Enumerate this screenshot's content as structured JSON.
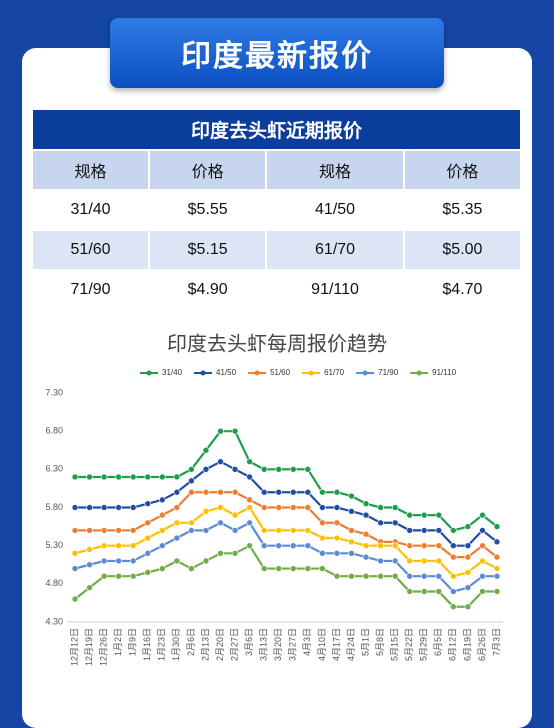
{
  "header": {
    "title": "印度最新报价"
  },
  "table": {
    "title": "印度去头虾近期报价",
    "columns": [
      "规格",
      "价格",
      "规格",
      "价格"
    ],
    "rows": [
      [
        "31/40",
        "$5.55",
        "41/50",
        "$5.35"
      ],
      [
        "51/60",
        "$5.15",
        "61/70",
        "$5.00"
      ],
      [
        "71/90",
        "$4.90",
        "91/110",
        "$4.70"
      ]
    ]
  },
  "chart_data": {
    "type": "line",
    "title": "印度去头虾每周报价趋势",
    "categories": [
      "12月12日",
      "12月19日",
      "12月26日",
      "1月2日",
      "1月9日",
      "1月16日",
      "1月23日",
      "1月30日",
      "2月6日",
      "2月13日",
      "2月20日",
      "2月27日",
      "3月6日",
      "3月13日",
      "3月20日",
      "3月27日",
      "4月3日",
      "4月10日",
      "4月17日",
      "4月24日",
      "5月1日",
      "5月8日",
      "5月15日",
      "5月22日",
      "5月29日",
      "6月5日",
      "6月12日",
      "6月19日",
      "6月26日",
      "7月3日"
    ],
    "series": [
      {
        "name": "31/40",
        "color": "#1e9e4a",
        "values": [
          6.2,
          6.2,
          6.2,
          6.2,
          6.2,
          6.2,
          6.2,
          6.2,
          6.3,
          6.55,
          6.8,
          6.8,
          6.4,
          6.3,
          6.3,
          6.3,
          6.3,
          6.0,
          6.0,
          5.95,
          5.85,
          5.8,
          5.8,
          5.7,
          5.7,
          5.7,
          5.5,
          5.55,
          5.7,
          5.55
        ]
      },
      {
        "name": "41/50",
        "color": "#1f4ea3",
        "values": [
          5.8,
          5.8,
          5.8,
          5.8,
          5.8,
          5.85,
          5.9,
          6.0,
          6.15,
          6.3,
          6.4,
          6.3,
          6.2,
          6.0,
          6.0,
          6.0,
          6.0,
          5.8,
          5.8,
          5.75,
          5.7,
          5.6,
          5.6,
          5.5,
          5.5,
          5.5,
          5.3,
          5.3,
          5.5,
          5.35
        ]
      },
      {
        "name": "51/60",
        "color": "#ed7d31",
        "values": [
          5.5,
          5.5,
          5.5,
          5.5,
          5.5,
          5.6,
          5.7,
          5.8,
          6.0,
          6.0,
          6.0,
          6.0,
          5.9,
          5.8,
          5.8,
          5.8,
          5.8,
          5.6,
          5.6,
          5.5,
          5.45,
          5.35,
          5.35,
          5.3,
          5.3,
          5.3,
          5.15,
          5.15,
          5.3,
          5.15
        ]
      },
      {
        "name": "61/70",
        "color": "#ffc000",
        "values": [
          5.2,
          5.25,
          5.3,
          5.3,
          5.3,
          5.4,
          5.5,
          5.6,
          5.6,
          5.75,
          5.8,
          5.7,
          5.8,
          5.5,
          5.5,
          5.5,
          5.5,
          5.4,
          5.4,
          5.35,
          5.3,
          5.3,
          5.3,
          5.1,
          5.1,
          5.1,
          4.9,
          4.95,
          5.1,
          5.0
        ]
      },
      {
        "name": "71/90",
        "color": "#5b8bd4",
        "values": [
          5.0,
          5.05,
          5.1,
          5.1,
          5.1,
          5.2,
          5.3,
          5.4,
          5.5,
          5.5,
          5.6,
          5.5,
          5.6,
          5.3,
          5.3,
          5.3,
          5.3,
          5.2,
          5.2,
          5.2,
          5.15,
          5.1,
          5.1,
          4.9,
          4.9,
          4.9,
          4.7,
          4.75,
          4.9,
          4.9
        ]
      },
      {
        "name": "91/110",
        "color": "#70ad47",
        "values": [
          4.6,
          4.75,
          4.9,
          4.9,
          4.9,
          4.95,
          5.0,
          5.1,
          5.0,
          5.1,
          5.2,
          5.2,
          5.3,
          5.0,
          5.0,
          5.0,
          5.0,
          5.0,
          4.9,
          4.9,
          4.9,
          4.9,
          4.9,
          4.7,
          4.7,
          4.7,
          4.5,
          4.5,
          4.7,
          4.7
        ]
      }
    ],
    "ylim": [
      4.3,
      7.3
    ],
    "yticks": [
      {
        "value": 4.3,
        "label": "4.30"
      },
      {
        "value": 4.8,
        "label": "4.80"
      },
      {
        "value": 5.3,
        "label": "5.30"
      },
      {
        "value": 5.8,
        "label": "5.80"
      },
      {
        "value": 6.3,
        "label": "6.30"
      },
      {
        "value": 6.8,
        "label": "6.80"
      },
      {
        "value": 7.3,
        "label": "7.30"
      }
    ],
    "grid": false,
    "legend": "top"
  }
}
